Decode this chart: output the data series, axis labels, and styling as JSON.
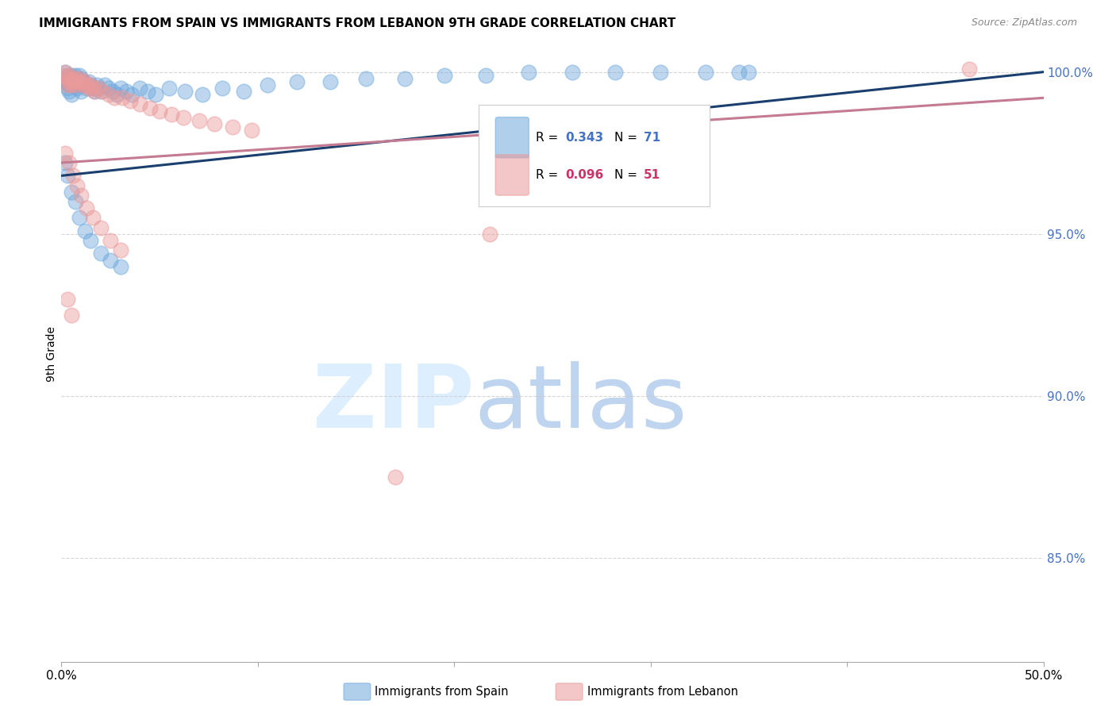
{
  "title": "IMMIGRANTS FROM SPAIN VS IMMIGRANTS FROM LEBANON 9TH GRADE CORRELATION CHART",
  "source": "Source: ZipAtlas.com",
  "ylabel": "9th Grade",
  "xlim": [
    0.0,
    0.5
  ],
  "ylim": [
    0.818,
    1.008
  ],
  "yticks": [
    0.85,
    0.9,
    0.95,
    1.0
  ],
  "ytick_labels": [
    "85.0%",
    "90.0%",
    "95.0%",
    "100.0%"
  ],
  "xticks": [
    0.0,
    0.1,
    0.2,
    0.3,
    0.4,
    0.5
  ],
  "xtick_labels": [
    "0.0%",
    "",
    "",
    "",
    "",
    "50.0%"
  ],
  "color_spain": "#6fa8dc",
  "color_lebanon": "#ea9999",
  "trendline_color_spain": "#1a3f6f",
  "trendline_color_lebanon": "#c47a90",
  "background_color": "#ffffff",
  "watermark_color": "#ddeeff",
  "spain_x": [
    0.001,
    0.002,
    0.002,
    0.003,
    0.003,
    0.003,
    0.004,
    0.004,
    0.004,
    0.005,
    0.005,
    0.005,
    0.006,
    0.006,
    0.007,
    0.007,
    0.008,
    0.008,
    0.009,
    0.009,
    0.01,
    0.01,
    0.011,
    0.012,
    0.013,
    0.014,
    0.015,
    0.016,
    0.017,
    0.018,
    0.019,
    0.02,
    0.022,
    0.024,
    0.026,
    0.028,
    0.03,
    0.033,
    0.036,
    0.04,
    0.044,
    0.048,
    0.055,
    0.063,
    0.072,
    0.082,
    0.093,
    0.105,
    0.12,
    0.137,
    0.155,
    0.175,
    0.195,
    0.216,
    0.238,
    0.26,
    0.282,
    0.305,
    0.328,
    0.35,
    0.002,
    0.003,
    0.005,
    0.007,
    0.009,
    0.012,
    0.015,
    0.02,
    0.025,
    0.03,
    0.345
  ],
  "spain_y": [
    0.997,
    1.0,
    0.998,
    0.999,
    0.997,
    0.995,
    0.998,
    0.996,
    0.994,
    0.999,
    0.997,
    0.993,
    0.998,
    0.996,
    0.999,
    0.997,
    0.998,
    0.995,
    0.999,
    0.996,
    0.998,
    0.994,
    0.997,
    0.996,
    0.995,
    0.997,
    0.996,
    0.995,
    0.994,
    0.996,
    0.995,
    0.994,
    0.996,
    0.995,
    0.994,
    0.993,
    0.995,
    0.994,
    0.993,
    0.995,
    0.994,
    0.993,
    0.995,
    0.994,
    0.993,
    0.995,
    0.994,
    0.996,
    0.997,
    0.997,
    0.998,
    0.998,
    0.999,
    0.999,
    1.0,
    1.0,
    1.0,
    1.0,
    1.0,
    1.0,
    0.972,
    0.968,
    0.963,
    0.96,
    0.955,
    0.951,
    0.948,
    0.944,
    0.942,
    0.94,
    1.0
  ],
  "lebanon_x": [
    0.001,
    0.002,
    0.003,
    0.003,
    0.004,
    0.004,
    0.005,
    0.005,
    0.006,
    0.007,
    0.007,
    0.008,
    0.009,
    0.01,
    0.011,
    0.012,
    0.013,
    0.014,
    0.015,
    0.016,
    0.017,
    0.019,
    0.021,
    0.024,
    0.027,
    0.031,
    0.035,
    0.04,
    0.045,
    0.05,
    0.056,
    0.062,
    0.07,
    0.078,
    0.087,
    0.097,
    0.002,
    0.004,
    0.006,
    0.008,
    0.01,
    0.013,
    0.016,
    0.02,
    0.025,
    0.03,
    0.218,
    0.462,
    0.003,
    0.005,
    0.17
  ],
  "lebanon_y": [
    0.999,
    1.0,
    0.998,
    0.996,
    0.999,
    0.997,
    0.998,
    0.996,
    0.997,
    0.998,
    0.996,
    0.997,
    0.998,
    0.997,
    0.996,
    0.997,
    0.996,
    0.995,
    0.996,
    0.995,
    0.994,
    0.995,
    0.994,
    0.993,
    0.992,
    0.992,
    0.991,
    0.99,
    0.989,
    0.988,
    0.987,
    0.986,
    0.985,
    0.984,
    0.983,
    0.982,
    0.975,
    0.972,
    0.968,
    0.965,
    0.962,
    0.958,
    0.955,
    0.952,
    0.948,
    0.945,
    0.95,
    1.001,
    0.93,
    0.925,
    0.875
  ],
  "trend_spain_x0": 0.0,
  "trend_spain_x1": 0.5,
  "trend_spain_y0": 0.968,
  "trend_spain_y1": 1.0,
  "trend_lebanon_x0": 0.0,
  "trend_lebanon_x1": 0.5,
  "trend_lebanon_y0": 0.972,
  "trend_lebanon_y1": 0.992
}
